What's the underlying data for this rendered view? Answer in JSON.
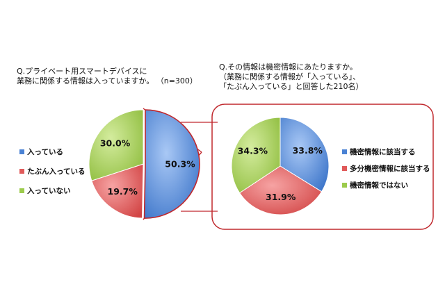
{
  "colors": {
    "blue": "#4a82d4",
    "red": "#e05a5a",
    "green": "#9ccb4c",
    "callout_border": "#c0282d"
  },
  "chart1": {
    "question_line1": "Q.プライベート用スマートデバイスに",
    "question_line2": "業務に関係する情報は入っていますか。",
    "sample": "（n=300）"
  },
  "chart2": {
    "question_line1": "Q.その情報は機密情報にあたりますか。",
    "question_line2": "（業務に関係する情報が「入っている」、",
    "question_line3": "「たぶん入っている」と回答した210名）"
  },
  "chart_data": [
    {
      "type": "pie",
      "categories": [
        "入っている",
        "たぶん入っている",
        "入っていない"
      ],
      "values": [
        50.3,
        19.7,
        30.0
      ],
      "labels": [
        "50.3%",
        "19.7%",
        "30.0%"
      ],
      "legend": "left",
      "exploded": "入っている"
    },
    {
      "type": "pie",
      "categories": [
        "機密情報に該当する",
        "多分機密情報に該当する",
        "機密情報ではない"
      ],
      "values": [
        33.8,
        31.9,
        34.3
      ],
      "labels": [
        "33.8%",
        "31.9%",
        "34.3%"
      ],
      "legend": "right"
    }
  ]
}
